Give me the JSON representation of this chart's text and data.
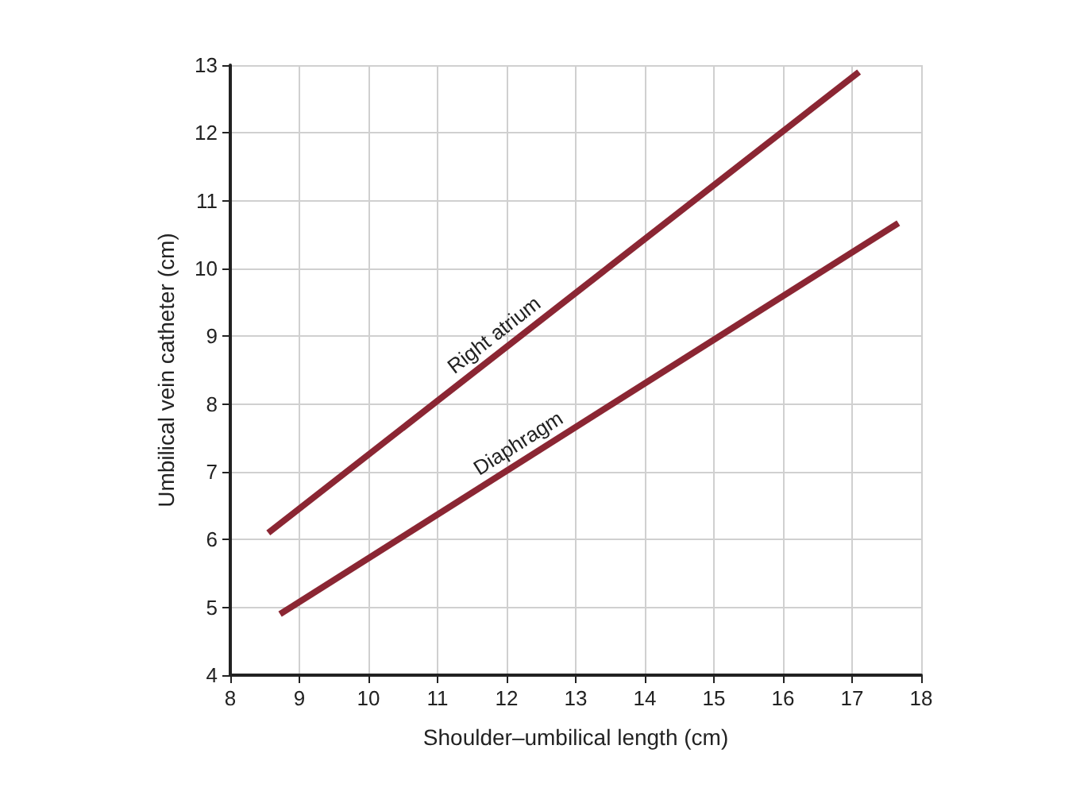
{
  "chart_data": {
    "type": "line",
    "xlabel": "Shoulder–umbilical length (cm)",
    "ylabel": "Umbilical vein catheter (cm)",
    "series": [
      {
        "color": "#8b2633",
        "x": [
          8.55,
          17.1
        ],
        "values": [
          6.1,
          12.9
        ]
      },
      {
        "color": "#8b2633",
        "x": [
          8.72,
          17.67
        ],
        "values": [
          4.9,
          10.67
        ]
      }
    ],
    "annotations": [
      "Right atrium",
      "Diaphragm"
    ],
    "xlim": [
      8,
      18
    ],
    "xticks": [
      8,
      9,
      10,
      11,
      12,
      13,
      14,
      15,
      16,
      17,
      18
    ],
    "ylim": [
      4,
      13
    ],
    "yticks": [
      4,
      5,
      6,
      7,
      8,
      9,
      10,
      11,
      12,
      13
    ],
    "grid": true,
    "marker": "none",
    "line_style": "solid"
  }
}
